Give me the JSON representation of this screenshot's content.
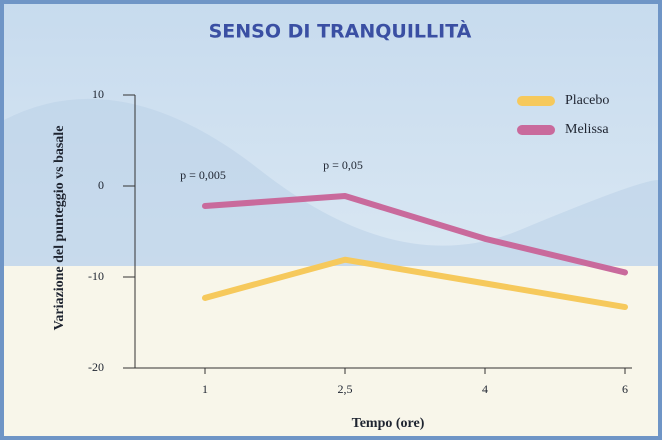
{
  "chart_data": {
    "type": "line",
    "title": "SENSO DI TRANQUILLITÀ",
    "x_label": "Tempo (ore)",
    "y_label": "Variazione del punteggio vs basale",
    "categories": [
      "1",
      "2,5",
      "4",
      "6"
    ],
    "series": [
      {
        "name": "Placebo",
        "color": "#f6c95c",
        "values": [
          -12.3,
          -8.1,
          -10.7,
          -13.3
        ]
      },
      {
        "name": "Melissa",
        "color": "#c96a9c",
        "values": [
          -2.2,
          -1.1,
          -5.8,
          -9.5
        ]
      }
    ],
    "annotations": [
      "p = 0,005",
      "p = 0,05"
    ],
    "ylim": [
      -20,
      10
    ],
    "yticks": [
      10,
      0,
      -10,
      -20
    ],
    "legend": "top-right"
  }
}
